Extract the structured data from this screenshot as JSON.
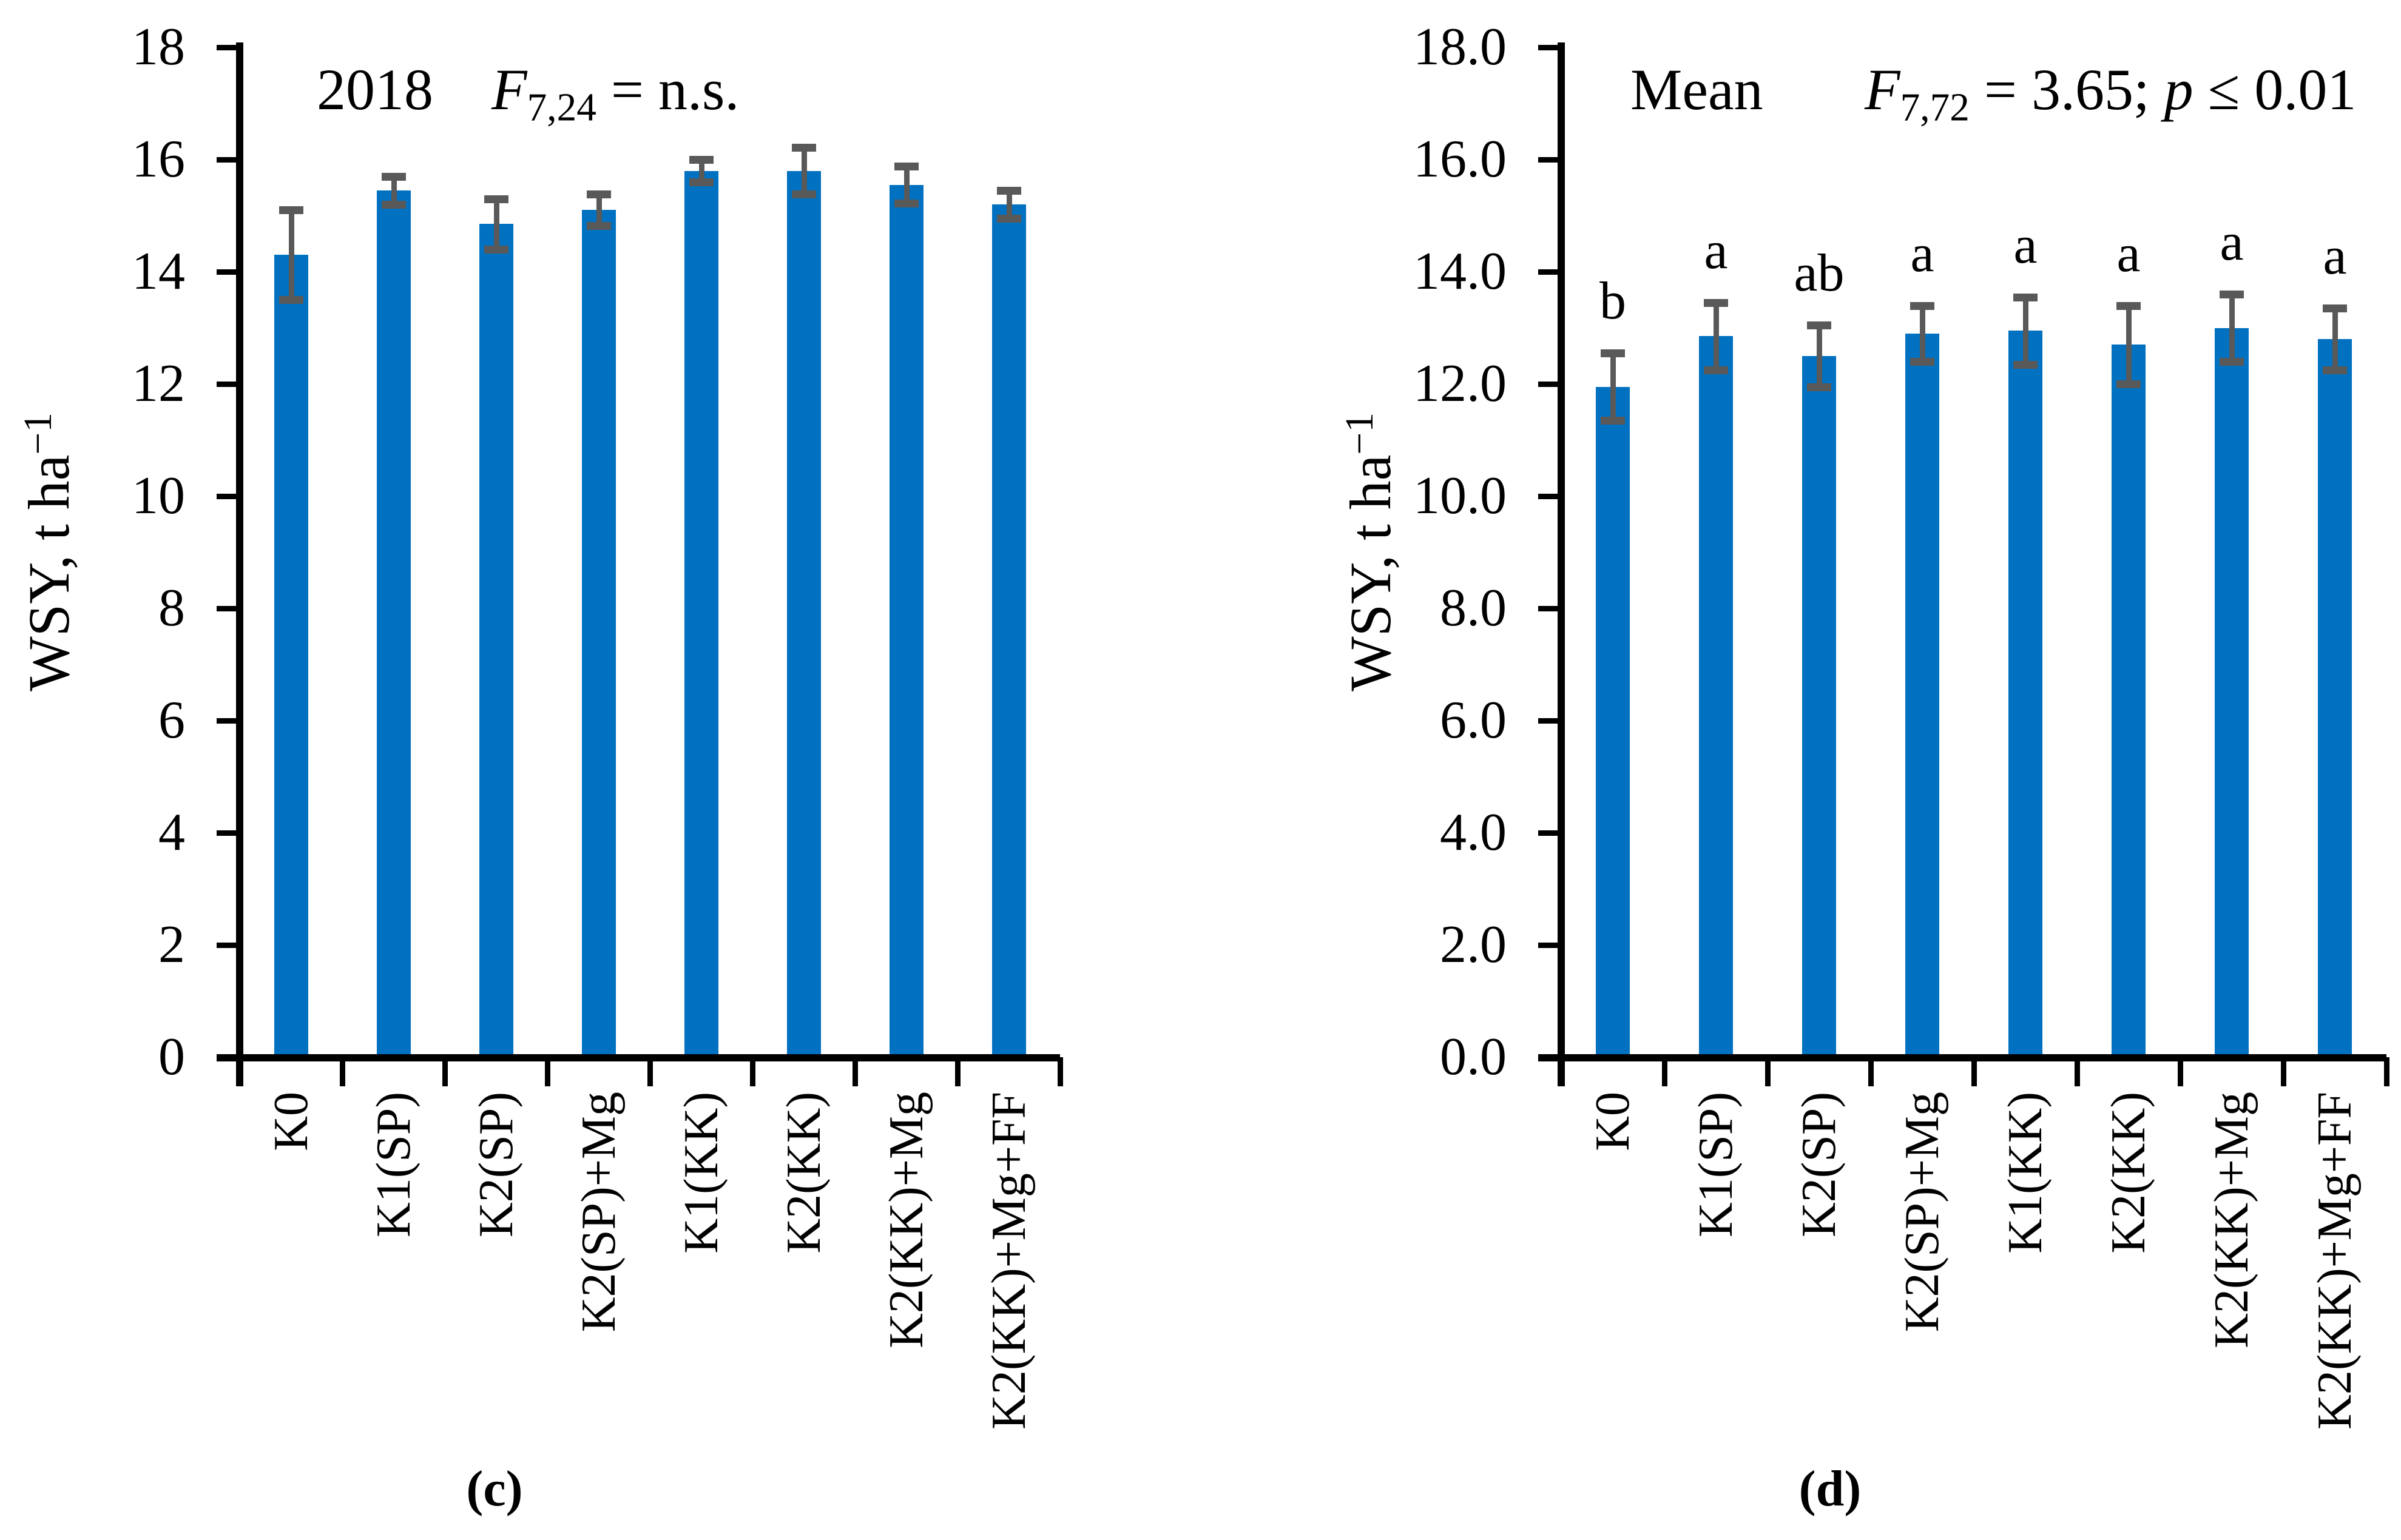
{
  "figure": {
    "colors": {
      "bar": "#0070C0",
      "error": "#595959",
      "axis": "#000000"
    },
    "captions": {
      "left": "(c)",
      "right": "(d)"
    }
  },
  "chart_data": [
    {
      "type": "bar",
      "panel": "c",
      "title": "2018",
      "stat": [
        {
          "t": "F",
          "i": true
        },
        {
          "t": "7,24",
          "sub": true
        },
        {
          "t": " = n.s."
        }
      ],
      "ylabel_text": "WSY, t ha−1",
      "ylabel_parts": [
        {
          "t": "WSY, t ha"
        },
        {
          "t": "−1",
          "sup": true
        }
      ],
      "categories": [
        "K0",
        "K1(SP)",
        "K2(SP)",
        "K2(SP)+Mg",
        "K1(KK)",
        "K2(KK)",
        "K2(KK)+Mg",
        "K2(KK)+Mg+FF"
      ],
      "values": [
        14.3,
        15.45,
        14.85,
        15.1,
        15.8,
        15.8,
        15.55,
        15.2
      ],
      "errors": [
        0.8,
        0.25,
        0.45,
        0.28,
        0.2,
        0.42,
        0.33,
        0.25
      ],
      "letters": null,
      "ylim": [
        0,
        18
      ],
      "ytick_step": 2,
      "ytick_decimals": 0,
      "grid": false,
      "legend": "none"
    },
    {
      "type": "bar",
      "panel": "d",
      "title": "Mean",
      "stat": [
        {
          "t": "F",
          "i": true
        },
        {
          "t": "7,72",
          "sub": true
        },
        {
          "t": " = 3.65; "
        },
        {
          "t": "p",
          "i": true
        },
        {
          "t": " ≤ 0.01"
        }
      ],
      "ylabel_text": "WSY, t ha−1",
      "ylabel_parts": [
        {
          "t": "WSY, t ha"
        },
        {
          "t": "−1",
          "sup": true
        }
      ],
      "categories": [
        "K0",
        "K1(SP)",
        "K2(SP)",
        "K2(SP)+Mg",
        "K1(KK)",
        "K2(KK)",
        "K2(KK)+Mg",
        "K2(KK)+Mg+FF"
      ],
      "values": [
        11.95,
        12.85,
        12.5,
        12.9,
        12.95,
        12.7,
        13.0,
        12.8
      ],
      "errors": [
        0.6,
        0.6,
        0.55,
        0.5,
        0.6,
        0.7,
        0.6,
        0.55
      ],
      "letters": [
        "b",
        "a",
        "ab",
        "a",
        "a",
        "a",
        "a",
        "a"
      ],
      "ylim": [
        0,
        18
      ],
      "ytick_step": 2,
      "ytick_decimals": 1,
      "grid": false,
      "legend": "none"
    }
  ]
}
